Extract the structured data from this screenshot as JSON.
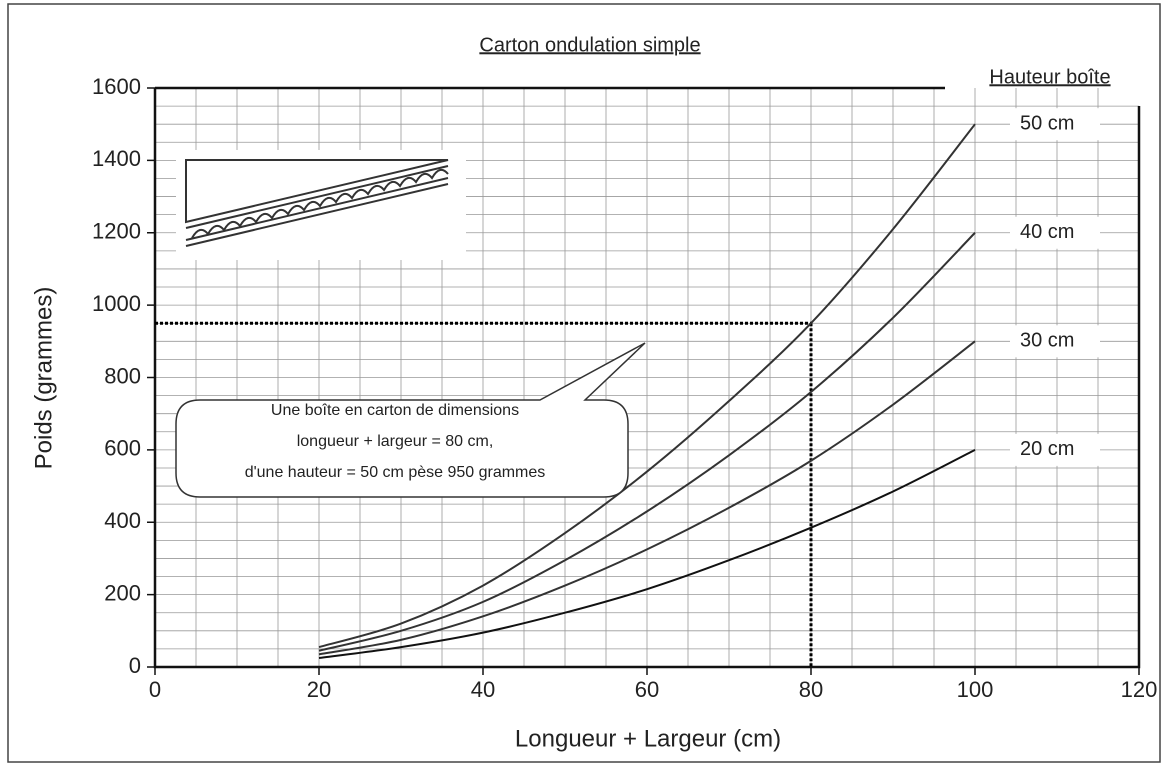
{
  "chart_data": {
    "type": "line",
    "title": "Carton ondulation simple",
    "xlabel": "Longueur + Largeur (cm)",
    "ylabel": "Poids (grammes)",
    "legend_title": "Hauteur boîte",
    "x": [
      20,
      30,
      40,
      50,
      60,
      70,
      80,
      90,
      100
    ],
    "series": [
      {
        "name": "50 cm",
        "color": "#333333",
        "values": [
          55,
          120,
          225,
          370,
          540,
          735,
          950,
          1210,
          1500
        ]
      },
      {
        "name": "40 cm",
        "color": "#333333",
        "values": [
          45,
          100,
          180,
          295,
          430,
          585,
          760,
          965,
          1200
        ]
      },
      {
        "name": "30 cm",
        "color": "#333333",
        "values": [
          35,
          75,
          140,
          225,
          325,
          440,
          570,
          725,
          900
        ]
      },
      {
        "name": "20 cm",
        "color": "#111111",
        "values": [
          25,
          55,
          95,
          150,
          215,
          295,
          385,
          485,
          600
        ]
      }
    ],
    "xlim": [
      0,
      120
    ],
    "xticks": [
      0,
      20,
      40,
      60,
      80,
      100,
      120
    ],
    "ylim": [
      0,
      1600
    ],
    "yticks": [
      0,
      200,
      400,
      600,
      800,
      1000,
      1200,
      1400,
      1600
    ],
    "grid": true,
    "minor_grid": {
      "x": 5,
      "y": 50
    },
    "reference": {
      "x": 80,
      "y": 950
    },
    "annotation": [
      "Une boîte en carton de dimensions",
      "longueur + largeur = 80 cm,",
      "d'une hauteur = 50 cm pèse 950 grammes"
    ]
  }
}
